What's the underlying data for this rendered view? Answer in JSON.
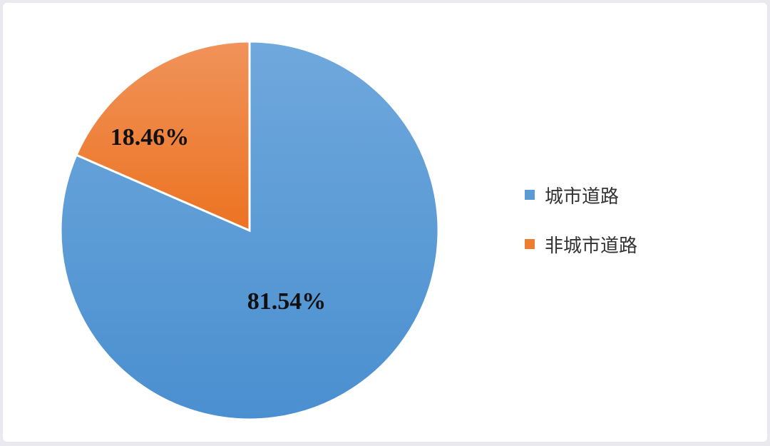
{
  "chart_data": {
    "type": "pie",
    "categories": [
      "城市道路",
      "非城市道路"
    ],
    "values": [
      81.54,
      18.46
    ],
    "data_labels": [
      "81.54%",
      "18.46%"
    ],
    "colors": [
      "#5b9bd5",
      "#ed7d31"
    ],
    "start_angle": "top, clockwise",
    "legend": {
      "position": "right",
      "entries": [
        "城市道路",
        "非城市道路"
      ]
    }
  }
}
